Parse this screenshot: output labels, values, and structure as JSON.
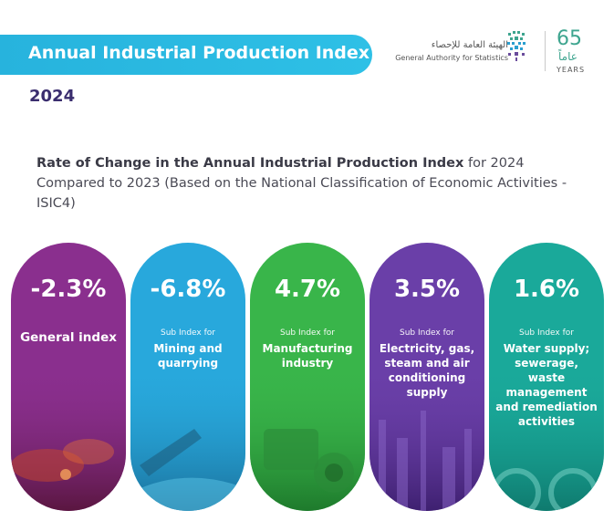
{
  "header": {
    "title": "Annual Industrial Production Index",
    "year": "2024"
  },
  "logo": {
    "org_ar": "الهيئة العامة للإحصاء",
    "org_en": "General Authority for Statistics",
    "anniv_num": "65",
    "anniv_ar": "عاماً",
    "anniv_en": "YEARS"
  },
  "subtitle": {
    "bold": "Rate of Change in the Annual Industrial Production Index",
    "rest": " for 2024 Compared to 2023 (Based on the National Classification of Economic Activities - ISIC4)"
  },
  "cards": [
    {
      "value": "-2.3%",
      "prefix": "",
      "name": "General index",
      "color": "#8a2f8e"
    },
    {
      "value": "-6.8%",
      "prefix": "Sub Index for",
      "name": "Mining and quarrying",
      "color": "#28a8dc"
    },
    {
      "value": "4.7%",
      "prefix": "Sub Index for",
      "name": "Manufacturing industry",
      "color": "#39b54a"
    },
    {
      "value": "3.5%",
      "prefix": "Sub Index for",
      "name": "Electricity, gas, steam and air conditioning supply",
      "color": "#6a3fa8"
    },
    {
      "value": "1.6%",
      "prefix": "Sub Index for",
      "name": "Water supply; sewerage, waste management and remediation activities",
      "color": "#1aa99a"
    }
  ]
}
